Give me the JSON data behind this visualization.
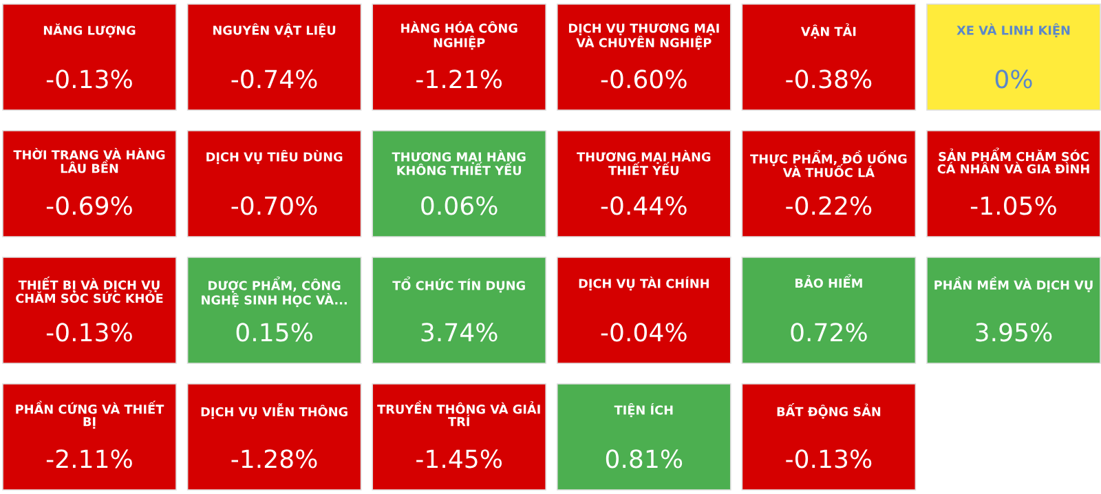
{
  "chart_data": {
    "type": "other",
    "categories": [
      "NĂNG LƯỢNG",
      "NGUYÊN VẬT LIỆU",
      "HÀNG HÓA CÔNG NGHIỆP",
      "DỊCH VỤ THƯƠNG MẠI VÀ CHUYÊN NGHIỆP",
      "VẬN TẢI",
      "XE VÀ LINH KIỆN",
      "THỜI TRANG VÀ HÀNG LÂU BỀN",
      "DỊCH VỤ TIÊU DÙNG",
      "THƯƠNG MẠI HÀNG KHÔNG THIẾT YẾU",
      "THƯƠNG MẠI HÀNG THIẾT YẾU",
      "THỰC PHẨM, ĐỒ UỐNG VÀ THUỐC LÁ",
      "SẢN PHẨM CHĂM SÓC CÁ NHÂN VÀ GIA ĐÌNH",
      "THIẾT BỊ VÀ DỊCH VỤ CHĂM SÓC SỨC KHỎE",
      "DƯỢC PHẨM, CÔNG NGHỆ SINH HỌC VÀ...",
      "TỔ CHỨC TÍN DỤNG",
      "DỊCH VỤ TÀI CHÍNH",
      "BẢO HIỂM",
      "PHẦN MỀM VÀ DỊCH VỤ",
      "PHẦN CỨNG VÀ THIẾT BỊ",
      "DỊCH VỤ VIỄN THÔNG",
      "TRUYỀN THÔNG VÀ GIẢI TRÍ",
      "TIỆN ÍCH",
      "BẤT ĐỘNG SẢN"
    ],
    "values": [
      -0.13,
      -0.74,
      -1.21,
      -0.6,
      -0.38,
      0,
      -0.69,
      -0.7,
      0.06,
      -0.44,
      -0.22,
      -1.05,
      -0.13,
      0.15,
      3.74,
      -0.04,
      0.72,
      3.95,
      -2.11,
      -1.28,
      -1.45,
      0.81,
      -0.13
    ],
    "value_labels": [
      "-0.13%",
      "-0.74%",
      "-1.21%",
      "-0.60%",
      "-0.38%",
      "0%",
      "-0.69%",
      "-0.70%",
      "0.06%",
      "-0.44%",
      "-0.22%",
      "-1.05%",
      "-0.13%",
      "0.15%",
      "3.74%",
      "-0.04%",
      "0.72%",
      "3.95%",
      "-2.11%",
      "-1.28%",
      "-1.45%",
      "0.81%",
      "-0.13%"
    ],
    "colors": [
      "#d50000",
      "#d50000",
      "#d50000",
      "#d50000",
      "#d50000",
      "#ffeb3b",
      "#d50000",
      "#d50000",
      "#4caf50",
      "#d50000",
      "#d50000",
      "#d50000",
      "#d50000",
      "#4caf50",
      "#4caf50",
      "#d50000",
      "#4caf50",
      "#4caf50",
      "#d50000",
      "#d50000",
      "#d50000",
      "#4caf50",
      "#d50000"
    ]
  }
}
